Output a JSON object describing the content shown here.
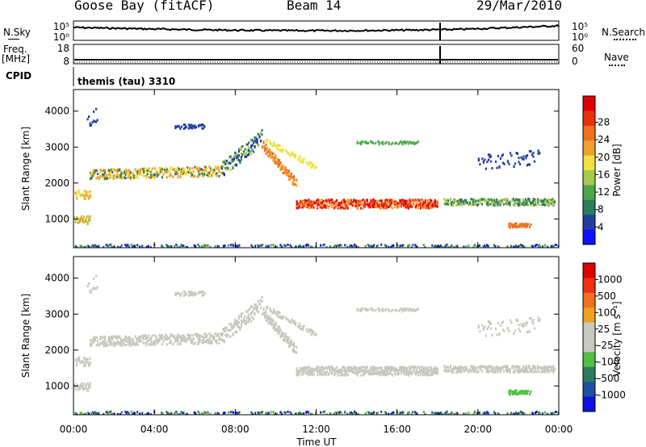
{
  "header": {
    "site": "Goose Bay (fitACF)",
    "beam": "Beam 14",
    "date": "29/Mar/2010"
  },
  "left_labels": {
    "nsky": "N.Sky",
    "freq": "Freq.",
    "freq_unit": "[MHz]",
    "cpid": "CPID"
  },
  "right_labels": {
    "nsearch": "N.Search",
    "nave": "Nave"
  },
  "cpid_text": "themis (tau) 3310",
  "colors": {
    "power": [
      "#1010ff",
      "#1f3fa0",
      "#2e7a5c",
      "#4aa84a",
      "#a8c84a",
      "#f0e040",
      "#f0a030",
      "#f07020",
      "#e83010",
      "#e00000"
    ],
    "velocity": [
      "#1010e0",
      "#1f4fa0",
      "#2e7a5c",
      "#50c040",
      "#c8c8c0",
      "#c8c8c0",
      "#f0a020",
      "#f07020",
      "#f03010",
      "#e00000"
    ]
  },
  "chart_data": [
    {
      "type": "line",
      "name": "noise-panel",
      "left_ticks": [
        "10^5",
        "10^0"
      ],
      "right_ticks": [
        "10^5",
        "10^0"
      ]
    },
    {
      "type": "line",
      "name": "frequency-panel",
      "left_ticks": [
        "18",
        "8"
      ],
      "right_ticks": [
        "60",
        "0"
      ]
    },
    {
      "type": "heatmap",
      "name": "power",
      "ylabel": "Slant Range [km]",
      "yticks": [
        1000,
        2000,
        3000,
        4000
      ],
      "ylim": [
        200,
        4600
      ],
      "colorbar_label": "Power [dB]",
      "colorbar_ticks": [
        "4",
        "8",
        "12",
        "16",
        "20",
        "24",
        "28"
      ]
    },
    {
      "type": "heatmap",
      "name": "velocity",
      "ylabel": "Slant Range [km]",
      "yticks": [
        1000,
        2000,
        3000,
        4000
      ],
      "ylim": [
        200,
        4600
      ],
      "colorbar_label": "Velocity [m s⁻¹]",
      "colorbar_ticks": [
        "1000",
        "500",
        "100",
        "25",
        "-25",
        "-100",
        "-500",
        "-1000"
      ]
    }
  ],
  "xaxis": {
    "label": "Time UT",
    "ticks": [
      "00:00",
      "04:00",
      "08:00",
      "12:00",
      "16:00",
      "20:00",
      "00:00"
    ],
    "xlim": [
      0,
      24
    ]
  }
}
